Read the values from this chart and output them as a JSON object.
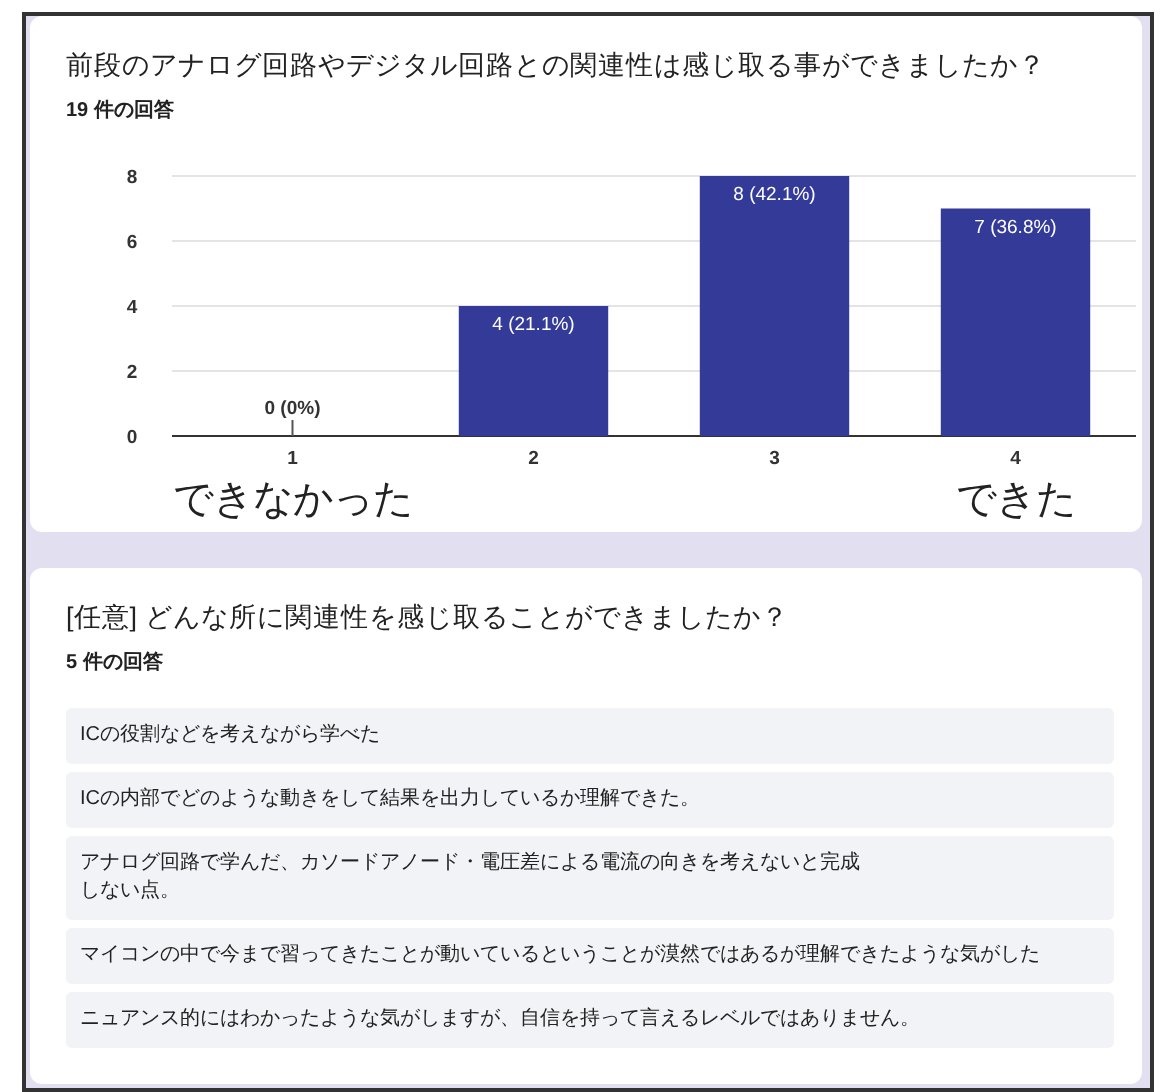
{
  "chart_data": [
    {
      "type": "bar",
      "title": "前段のアナログ回路やデジタル回路との関連性は感じ取る事ができましたか？",
      "subtitle": "19 件の回答",
      "categories": [
        "1",
        "2",
        "3",
        "4"
      ],
      "values": [
        0,
        4,
        8,
        7
      ],
      "color": "#343a98",
      "value_labels": [
        "0 (0%)",
        "4 (21.1%)",
        "8 (42.1%)",
        "7 (36.8%)"
      ],
      "ylim": [
        0,
        8
      ],
      "yticks": [
        0,
        2,
        4,
        6,
        8
      ],
      "grid": "y",
      "annotations": [
        "できなかった",
        "できた"
      ]
    },
    {
      "type": "other",
      "title": "[任意] どんな所に関連性を感じ取ることができましたか？",
      "subtitle": "5 件の回答",
      "annotations": [
        "ICの役割などを考えながら学べた",
        "ICの内部でどのような動きをして結果を出力しているか理解できた。",
        "アナログ回路で学んだ、カソードアノード・電圧差による電流の向きを考えないと完成しない点。",
        "マイコンの中で今まで習ってきたことが動いているということが漠然ではあるが理解できたような気がした",
        "ニュアンス的にはわかったような気がしますが、自信を持って言えるレベルではありません。"
      ]
    }
  ]
}
